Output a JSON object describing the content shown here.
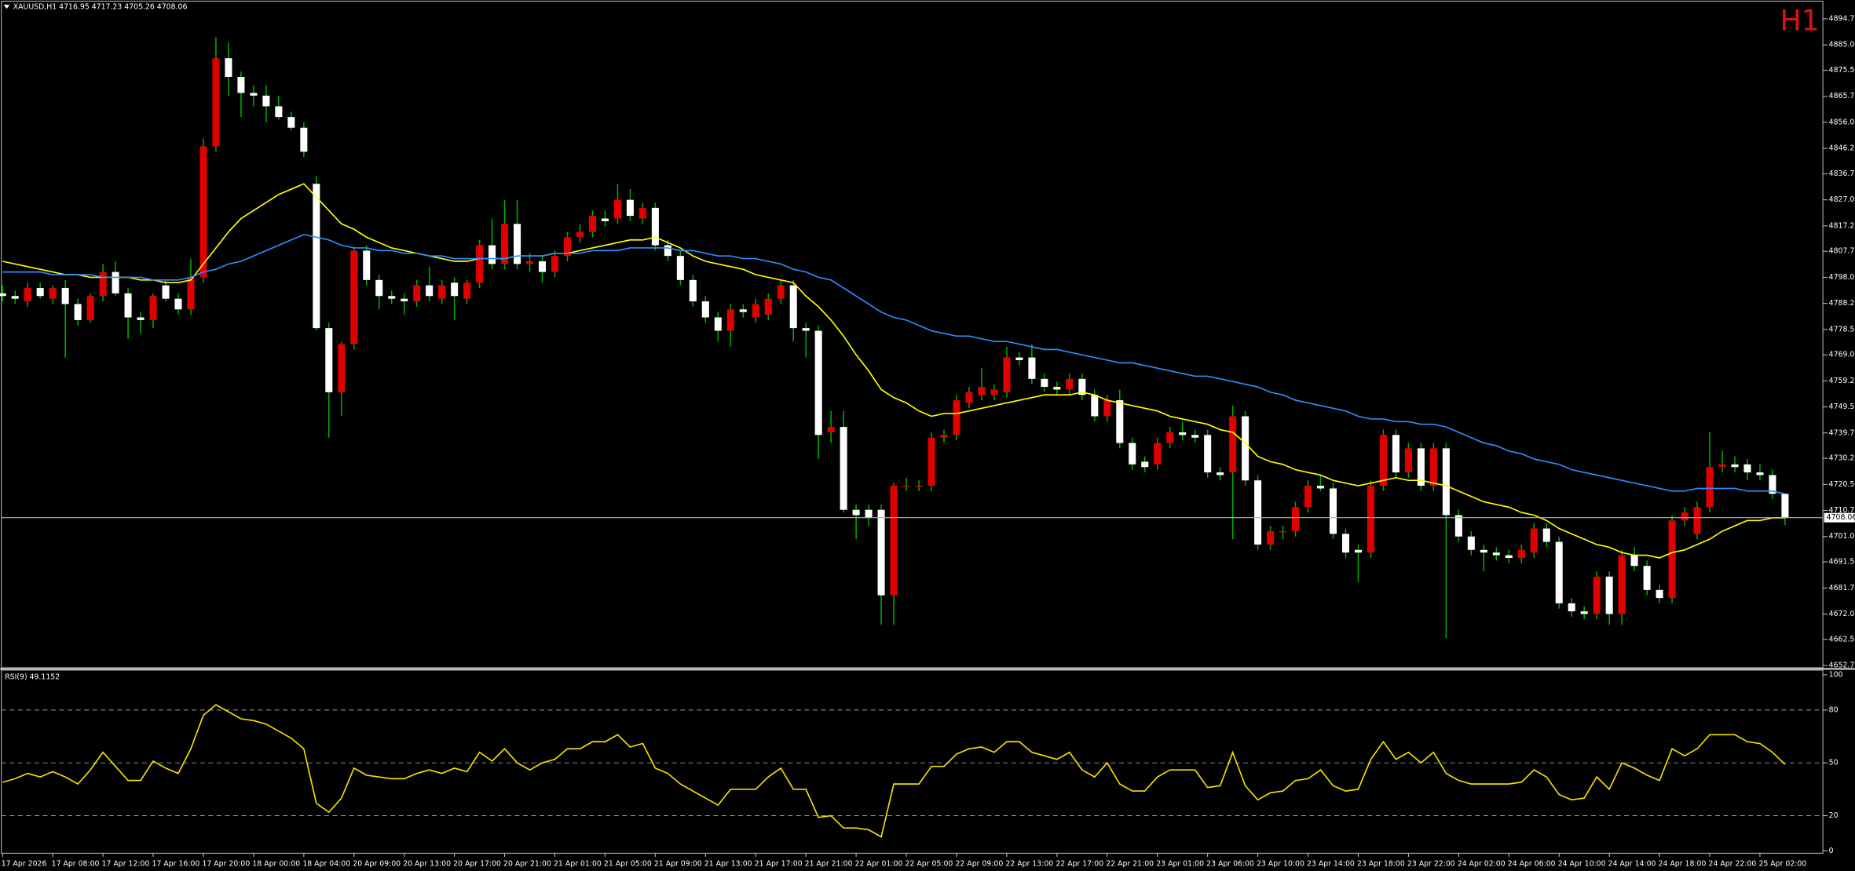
{
  "chart_data": [
    {
      "type": "candlestick",
      "title": "XAUUSD,H1  4716.95 4717.23 4705.26 4708.06",
      "watermark": "H1",
      "up_color": "#e00000",
      "down_color": "#ffffff",
      "wick_color": "#00b000",
      "grid": false,
      "ylim": [
        4651.9,
        4900.9
      ],
      "yticks": [
        4894.75,
        {
          "value": 4885,
          "label": "4885.00"
        },
        {
          "value": 4875.5,
          "label": "4875.50"
        },
        4865.75,
        {
          "value": 4856,
          "label": "4856.00"
        },
        4846.25,
        4836.75,
        {
          "value": 4827,
          "label": "4827.00"
        },
        4817.25,
        4807.75,
        {
          "value": 4798,
          "label": "4798.00"
        },
        4788.25,
        {
          "value": 4778.5,
          "label": "4778.50"
        },
        {
          "value": 4769,
          "label": "4769.00"
        },
        4759.25,
        {
          "value": 4749.5,
          "label": "4749.50"
        },
        4739.75,
        4730.25,
        {
          "value": 4720.5,
          "label": "4720.50"
        },
        4710.75,
        {
          "value": 4701,
          "label": "4701.00"
        },
        {
          "value": 4691.5,
          "label": "4691.50"
        },
        4681.75,
        {
          "value": 4672,
          "label": "4672.00"
        },
        {
          "value": 4662.5,
          "label": "4662.50"
        },
        4652.75
      ],
      "categories": [
        "17 Apr 2026",
        null,
        null,
        null,
        "17 Apr 08:00",
        null,
        null,
        null,
        "17 Apr 12:00",
        null,
        null,
        null,
        "17 Apr 16:00",
        null,
        null,
        null,
        "17 Apr 20:00",
        null,
        null,
        null,
        "18 Apr 00:00",
        null,
        null,
        null,
        "18 Apr 04:00",
        null,
        null,
        null,
        "20 Apr 09:00",
        null,
        null,
        null,
        "20 Apr 13:00",
        null,
        null,
        null,
        "20 Apr 17:00",
        null,
        null,
        null,
        "20 Apr 21:00",
        null,
        null,
        null,
        "21 Apr 01:00",
        null,
        null,
        null,
        "21 Apr 05:00",
        null,
        null,
        null,
        "21 Apr 09:00",
        null,
        null,
        null,
        "21 Apr 13:00",
        null,
        null,
        null,
        "21 Apr 17:00",
        null,
        null,
        null,
        "21 Apr 21:00",
        null,
        null,
        null,
        "22 Apr 01:00",
        null,
        null,
        null,
        "22 Apr 05:00",
        null,
        null,
        null,
        "22 Apr 09:00",
        null,
        null,
        null,
        "22 Apr 13:00",
        null,
        null,
        null,
        "22 Apr 17:00",
        null,
        null,
        null,
        "22 Apr 21:00",
        null,
        null,
        null,
        "23 Apr 01:00",
        null,
        null,
        null,
        "23 Apr 06:00",
        null,
        null,
        null,
        "23 Apr 10:00",
        null,
        null,
        null,
        "23 Apr 14:00",
        null,
        null,
        null,
        "23 Apr 18:00",
        null,
        null,
        null,
        "23 Apr 22:00",
        null,
        null,
        null,
        "24 Apr 02:00",
        null,
        null,
        null,
        "24 Apr 06:00",
        null,
        null,
        null,
        "24 Apr 10:00",
        null,
        null,
        null,
        "24 Apr 14:00",
        null,
        null,
        null,
        "24 Apr 18:00",
        null,
        null,
        null,
        "24 Apr 22:00",
        null,
        null,
        null,
        "25 Apr 02:00",
        null,
        null
      ],
      "open": [
        4792,
        4791,
        4789,
        4794,
        4790,
        4794,
        4788,
        4782,
        4791,
        4800,
        4792,
        4783,
        4782,
        4795,
        4790,
        4786,
        4798,
        4847,
        4880,
        4873,
        4867,
        4866,
        4862,
        4858,
        4854,
        4833,
        4779,
        4755,
        4773,
        4808,
        4797,
        4791,
        4790,
        4789,
        4795,
        4790,
        4796,
        4790,
        4796,
        4810,
        4803,
        4818,
        4803,
        4804,
        4800,
        4806,
        4813,
        4815,
        4820,
        4820,
        4827,
        4820,
        4824,
        4810,
        4806,
        4797,
        4789,
        4783,
        4778,
        4786,
        4783,
        4784,
        4790,
        4795,
        4779,
        4778,
        4740,
        4742,
        4711,
        4711,
        4711,
        4679,
        4720,
        4720,
        4720,
        4738,
        4739,
        4751,
        4754,
        4754,
        4755,
        4768,
        4768,
        4760,
        4757,
        4756,
        4760,
        4754,
        4746,
        4752,
        4736,
        4729,
        4728,
        4736,
        4740,
        4739,
        4739,
        4725,
        4725,
        4746,
        4722,
        4698,
        4703,
        4703,
        4712,
        4720,
        4719,
        4702,
        4696,
        4695,
        4720,
        4739,
        4725,
        4734,
        4720,
        4734,
        4709,
        4701,
        4696,
        4695,
        4694,
        4693,
        4695,
        4704,
        4699,
        4676,
        4673,
        4672,
        4686,
        4672,
        4694,
        4690,
        4681,
        4678,
        4707,
        4702,
        4712,
        4727,
        4728,
        4728,
        4725,
        4724,
        4716.95
      ],
      "high": [
        4795,
        4793,
        4796,
        4796,
        4795,
        4797,
        4790,
        4792,
        4803,
        4804,
        4794,
        4785,
        4792,
        4797,
        4792,
        4805,
        4850,
        4888,
        4886,
        4875,
        4870,
        4870,
        4866,
        4860,
        4856,
        4836,
        4781,
        4774,
        4809,
        4810,
        4799,
        4793,
        4792,
        4797,
        4802,
        4797,
        4798,
        4797,
        4812,
        4820,
        4827,
        4827,
        4807,
        4806,
        4808,
        4815,
        4818,
        4823,
        4823,
        4833,
        4831,
        4826,
        4826,
        4812,
        4808,
        4799,
        4791,
        4785,
        4788,
        4788,
        4790,
        4792,
        4797,
        4797,
        4781,
        4780,
        4748,
        4748,
        4713,
        4713,
        4713,
        4721,
        4723,
        4722,
        4740,
        4741,
        4754,
        4757,
        4764,
        4758,
        4772,
        4770,
        4773,
        4762,
        4759,
        4762,
        4762,
        4756,
        4754,
        4756,
        4738,
        4731,
        4738,
        4742,
        4744,
        4741,
        4741,
        4727,
        4750,
        4748,
        4724,
        4705,
        4705,
        4714,
        4722,
        4724,
        4721,
        4704,
        4698,
        4722,
        4741,
        4741,
        4736,
        4736,
        4736,
        4736,
        4711,
        4703,
        4698,
        4697,
        4696,
        4698,
        4706,
        4706,
        4701,
        4678,
        4675,
        4688,
        4688,
        4696,
        4697,
        4692,
        4683,
        4709,
        4712,
        4714,
        4740,
        4733,
        4731,
        4730,
        4728,
        4726,
        4717.23
      ],
      "low": [
        4789,
        4788,
        4787,
        4790,
        4788,
        4768,
        4780,
        4781,
        4789,
        4791,
        4775,
        4777,
        4779,
        4789,
        4784,
        4784,
        4796,
        4845,
        4866,
        4858,
        4862,
        4856,
        4857,
        4853,
        4843,
        4778,
        4738,
        4746,
        4771,
        4795,
        4786,
        4788,
        4784,
        4787,
        4789,
        4788,
        4782,
        4788,
        4794,
        4801,
        4801,
        4801,
        4800,
        4796,
        4798,
        4804,
        4811,
        4813,
        4817,
        4818,
        4819,
        4818,
        4808,
        4804,
        4795,
        4787,
        4781,
        4774,
        4772,
        4783,
        4781,
        4782,
        4788,
        4774,
        4768,
        4730,
        4736,
        4710,
        4700,
        4705,
        4668,
        4668,
        4718,
        4718,
        4718,
        4736,
        4737,
        4749,
        4752,
        4752,
        4753,
        4765,
        4758,
        4755,
        4754,
        4754,
        4752,
        4744,
        4744,
        4734,
        4726,
        4725,
        4726,
        4734,
        4737,
        4736,
        4723,
        4722,
        4700,
        4720,
        4696,
        4696,
        4700,
        4701,
        4710,
        4718,
        4700,
        4693,
        4684,
        4693,
        4718,
        4723,
        4723,
        4718,
        4718,
        4663,
        4699,
        4694,
        4688,
        4692,
        4691,
        4691,
        4693,
        4697,
        4674,
        4671,
        4670,
        4670,
        4668,
        4668,
        4688,
        4679,
        4676,
        4676,
        4705,
        4700,
        4710,
        4725,
        4725,
        4722,
        4722,
        4715,
        4705.26
      ],
      "close": [
        4791,
        4790,
        4794,
        4791,
        4794,
        4788,
        4782,
        4791,
        4800,
        4792,
        4783,
        4782,
        4791,
        4790,
        4786,
        4798,
        4847,
        4880,
        4873,
        4867,
        4866,
        4862,
        4858,
        4854,
        4845,
        4779,
        4755,
        4773,
        4808,
        4797,
        4791,
        4790,
        4789,
        4795,
        4791,
        4795,
        4791,
        4796,
        4810,
        4803,
        4818,
        4803,
        4804,
        4800,
        4806,
        4813,
        4815,
        4821,
        4819,
        4827,
        4821,
        4824,
        4810,
        4806,
        4797,
        4789,
        4783,
        4778,
        4786,
        4785,
        4788,
        4790,
        4795,
        4779,
        4778,
        4739,
        4742,
        4711,
        4709,
        4708,
        4679,
        4720,
        4720,
        4720,
        4738,
        4739,
        4752,
        4755,
        4757,
        4756,
        4768,
        4767,
        4760,
        4757,
        4756,
        4760,
        4754,
        4746,
        4752,
        4736,
        4728,
        4727,
        4736,
        4740,
        4739,
        4738,
        4725,
        4724,
        4746,
        4722,
        4698,
        4703,
        4703,
        4712,
        4720,
        4719,
        4702,
        4695,
        4695,
        4720,
        4739,
        4725,
        4734,
        4720,
        4734,
        4709,
        4701,
        4696,
        4695,
        4694,
        4693,
        4696,
        4704,
        4699,
        4676,
        4673,
        4672,
        4686,
        4672,
        4694,
        4690,
        4681,
        4678,
        4707,
        4710,
        4712,
        4727,
        4728,
        4727,
        4725,
        4724,
        4717,
        4708.06
      ],
      "series": [
        {
          "color": "#ffff00",
          "values": [
            4804,
            4803,
            4802,
            4801,
            4800,
            4799,
            4799,
            4798,
            4798,
            4798,
            4798,
            4797,
            4797,
            4796,
            4796,
            4797,
            4803,
            4809,
            4815,
            4820,
            4823,
            4826,
            4829,
            4831,
            4833,
            4828,
            4823,
            4818,
            4816,
            4813,
            4811,
            4809,
            4808,
            4807,
            4806,
            4805,
            4804,
            4804,
            4805,
            4805,
            4805,
            4806,
            4806,
            4806,
            4807,
            4807,
            4808,
            4809,
            4810,
            4811,
            4812,
            4812,
            4813,
            4811,
            4809,
            4806,
            4804,
            4803,
            4802,
            4801,
            4799,
            4798,
            4797,
            4796,
            4791,
            4787,
            4782,
            4776,
            4769,
            4763,
            4756,
            4753,
            4751,
            4748,
            4746,
            4747,
            4747,
            4748,
            4749,
            4750,
            4751,
            4752,
            4753,
            4754,
            4754,
            4754,
            4755,
            4754,
            4752,
            4751,
            4750,
            4749,
            4748,
            4746,
            4745,
            4744,
            4743,
            4741,
            4740,
            4736,
            4731,
            4729,
            4728,
            4726,
            4725,
            4724,
            4722,
            4721,
            4720,
            4721,
            4722,
            4723,
            4722,
            4722,
            4721,
            4720,
            4718,
            4716,
            4714,
            4713,
            4712,
            4710,
            4709,
            4707,
            4704,
            4702,
            4700,
            4698,
            4697,
            4695,
            4694,
            4694,
            4693,
            4695,
            4696,
            4698,
            4700,
            4703,
            4705,
            4707,
            4707,
            4708,
            4708
          ]
        },
        {
          "color": "#2f8cff",
          "values": [
            4800,
            4800,
            4800,
            4800,
            4799,
            4799,
            4799,
            4799,
            4798,
            4798,
            4798,
            4798,
            4797,
            4797,
            4797,
            4798,
            4800,
            4801,
            4803,
            4804,
            4806,
            4808,
            4810,
            4812,
            4814,
            4813,
            4812,
            4810,
            4809,
            4809,
            4808,
            4808,
            4807,
            4807,
            4806,
            4806,
            4805,
            4805,
            4805,
            4805,
            4805,
            4806,
            4806,
            4806,
            4807,
            4807,
            4807,
            4808,
            4808,
            4808,
            4809,
            4809,
            4809,
            4809,
            4808,
            4808,
            4807,
            4806,
            4806,
            4805,
            4805,
            4804,
            4803,
            4801,
            4800,
            4798,
            4797,
            4794,
            4791,
            4788,
            4785,
            4783,
            4782,
            4780,
            4778,
            4777,
            4776,
            4776,
            4775,
            4774,
            4774,
            4773,
            4772,
            4771,
            4771,
            4770,
            4769,
            4768,
            4767,
            4766,
            4766,
            4765,
            4764,
            4763,
            4762,
            4761,
            4761,
            4760,
            4759,
            4758,
            4757,
            4755,
            4754,
            4752,
            4751,
            4750,
            4749,
            4748,
            4746,
            4745,
            4745,
            4744,
            4744,
            4743,
            4743,
            4742,
            4740,
            4738,
            4736,
            4735,
            4733,
            4732,
            4730,
            4729,
            4728,
            4726,
            4725,
            4724,
            4723,
            4722,
            4721,
            4720,
            4719,
            4718,
            4718,
            4719,
            4719,
            4719,
            4719,
            4718,
            4718,
            4718,
            4717
          ]
        }
      ]
    },
    {
      "type": "line",
      "title": "RSI(9) 49.1152",
      "color": "#f5e000",
      "grid": true,
      "ylim": [
        0,
        100
      ],
      "yticks": [
        100,
        80,
        50,
        20,
        0
      ],
      "values": [
        39,
        41,
        44,
        42,
        45,
        42,
        38,
        46,
        56,
        48,
        40,
        40,
        51,
        47,
        44,
        58,
        77,
        83,
        79,
        75,
        74,
        72,
        68,
        64,
        58,
        27,
        22,
        30,
        47,
        43,
        42,
        41,
        41,
        44,
        46,
        44,
        47,
        45,
        56,
        51,
        58,
        50,
        46,
        50,
        52,
        58,
        58,
        62,
        62,
        66,
        59,
        61,
        47,
        44,
        38,
        34,
        30,
        26,
        35,
        35,
        35,
        42,
        47,
        35,
        35,
        19,
        20,
        13,
        13,
        12,
        8,
        38,
        38,
        38,
        48,
        48,
        55,
        58,
        59,
        56,
        62,
        62,
        56,
        54,
        52,
        56,
        46,
        42,
        50,
        38,
        34,
        34,
        42,
        46,
        46,
        46,
        36,
        37,
        56,
        37,
        29,
        33,
        34,
        40,
        41,
        46,
        37,
        34,
        35,
        52,
        62,
        52,
        56,
        50,
        56,
        44,
        40,
        38,
        38,
        38,
        38,
        39,
        46,
        42,
        32,
        29,
        30,
        42,
        35,
        50,
        47,
        43,
        40,
        58,
        54,
        58,
        66,
        66,
        66,
        62,
        61,
        56,
        49.1152
      ]
    }
  ]
}
